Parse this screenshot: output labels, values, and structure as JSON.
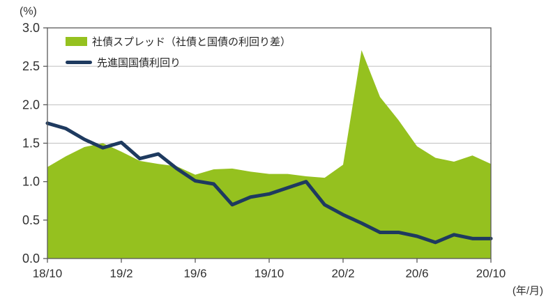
{
  "unit_label": "(%)",
  "x_axis_unit_label": "(年/月)",
  "colors": {
    "area": "#95C11F",
    "line": "#1E3A5F",
    "grid": "#BFBFBF",
    "border": "#595959",
    "text": "#303030"
  },
  "legend": {
    "items": [
      {
        "label": "社債スプレッド（社債と国債の利回り差）",
        "swatch": "area"
      },
      {
        "label": "先進国国債利回り",
        "swatch": "line"
      }
    ]
  },
  "chart_data": {
    "type": "area",
    "title": "",
    "xlabel": "(年/月)",
    "ylabel": "(%)",
    "ylim": [
      0.0,
      3.0
    ],
    "ytick_step": 0.5,
    "grid": true,
    "legend_position": "top-left",
    "x": [
      "18/10",
      "18/11",
      "18/12",
      "19/1",
      "19/2",
      "19/3",
      "19/4",
      "19/5",
      "19/6",
      "19/7",
      "19/8",
      "19/9",
      "19/10",
      "19/11",
      "19/12",
      "20/1",
      "20/2",
      "20/3",
      "20/4",
      "20/5",
      "20/6",
      "20/7",
      "20/8",
      "20/9",
      "20/10"
    ],
    "xtick_labels": [
      "18/10",
      "19/2",
      "19/6",
      "19/10",
      "20/2",
      "20/6",
      "20/10"
    ],
    "xtick_indices": [
      0,
      4,
      8,
      12,
      16,
      20,
      24
    ],
    "series": [
      {
        "name": "社債スプレッド（社債と国債の利回り差）",
        "type": "area",
        "color": "#95C11F",
        "values": [
          1.19,
          1.33,
          1.45,
          1.5,
          1.39,
          1.27,
          1.23,
          1.2,
          1.09,
          1.16,
          1.17,
          1.13,
          1.1,
          1.1,
          1.07,
          1.05,
          1.22,
          2.71,
          2.1,
          1.8,
          1.46,
          1.31,
          1.26,
          1.34,
          1.23
        ]
      },
      {
        "name": "先進国国債利回り",
        "type": "line",
        "color": "#1E3A5F",
        "values": [
          1.76,
          1.69,
          1.55,
          1.44,
          1.51,
          1.3,
          1.36,
          1.17,
          1.01,
          0.97,
          0.7,
          0.8,
          0.84,
          0.92,
          1.0,
          0.7,
          0.57,
          0.46,
          0.34,
          0.34,
          0.29,
          0.21,
          0.31,
          0.26,
          0.26
        ]
      }
    ]
  }
}
